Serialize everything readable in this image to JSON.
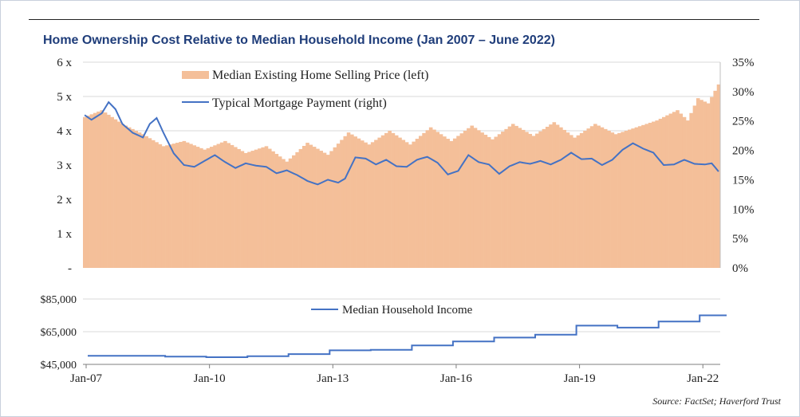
{
  "title": "Home Ownership Cost Relative to Median Household Income (Jan 2007 – June 2022)",
  "source": "Source: FactSet; Haverford Trust",
  "colors": {
    "bar": "#f4bf99",
    "line": "#4472c4",
    "grid": "#d9d9d9",
    "title": "#1f3d7a"
  },
  "chart_data": [
    {
      "type": "bar+line",
      "x_start": "2007-01",
      "x_end": "2022-06",
      "frequency": "monthly",
      "left_axis": {
        "ylim": [
          0,
          6
        ],
        "ticks": [
          "-",
          "1 x",
          "2 x",
          "3 x",
          "4 x",
          "5 x",
          "6 x"
        ]
      },
      "right_axis": {
        "ylim": [
          0,
          35
        ],
        "ticks": [
          "0%",
          "5%",
          "10%",
          "15%",
          "20%",
          "25%",
          "30%",
          "35%"
        ]
      },
      "grid": true,
      "legend_position": "top-left",
      "series": [
        {
          "name": "Median Existing Home Selling Price (left)",
          "type": "bar",
          "axis": "left",
          "anchors": [
            [
              "2007-01",
              4.4
            ],
            [
              "2007-06",
              4.6
            ],
            [
              "2007-12",
              4.2
            ],
            [
              "2008-06",
              3.9
            ],
            [
              "2008-12",
              3.55
            ],
            [
              "2009-06",
              3.7
            ],
            [
              "2009-12",
              3.45
            ],
            [
              "2010-06",
              3.7
            ],
            [
              "2010-12",
              3.35
            ],
            [
              "2011-06",
              3.55
            ],
            [
              "2011-12",
              3.1
            ],
            [
              "2012-06",
              3.65
            ],
            [
              "2012-12",
              3.3
            ],
            [
              "2013-06",
              3.95
            ],
            [
              "2013-12",
              3.6
            ],
            [
              "2014-06",
              4.0
            ],
            [
              "2014-12",
              3.6
            ],
            [
              "2015-06",
              4.1
            ],
            [
              "2015-12",
              3.7
            ],
            [
              "2016-06",
              4.15
            ],
            [
              "2016-12",
              3.75
            ],
            [
              "2017-06",
              4.2
            ],
            [
              "2017-12",
              3.85
            ],
            [
              "2018-06",
              4.25
            ],
            [
              "2018-12",
              3.8
            ],
            [
              "2019-06",
              4.2
            ],
            [
              "2019-12",
              3.9
            ],
            [
              "2020-06",
              4.1
            ],
            [
              "2020-12",
              4.3
            ],
            [
              "2021-06",
              4.6
            ],
            [
              "2021-09",
              4.3
            ],
            [
              "2021-12",
              4.95
            ],
            [
              "2022-03",
              4.8
            ],
            [
              "2022-06",
              5.35
            ]
          ]
        },
        {
          "name": "Typical Mortgage Payment (right)",
          "type": "line",
          "axis": "right",
          "anchors": [
            [
              "2007-01",
              26.0
            ],
            [
              "2007-03",
              25.2
            ],
            [
              "2007-06",
              26.3
            ],
            [
              "2007-08",
              28.2
            ],
            [
              "2007-10",
              27.0
            ],
            [
              "2007-12",
              24.5
            ],
            [
              "2008-03",
              23.0
            ],
            [
              "2008-06",
              22.2
            ],
            [
              "2008-08",
              24.5
            ],
            [
              "2008-10",
              25.5
            ],
            [
              "2008-12",
              23.0
            ],
            [
              "2009-03",
              19.5
            ],
            [
              "2009-06",
              17.5
            ],
            [
              "2009-09",
              17.2
            ],
            [
              "2009-12",
              18.2
            ],
            [
              "2010-03",
              19.2
            ],
            [
              "2010-06",
              18.0
            ],
            [
              "2010-09",
              17.0
            ],
            [
              "2010-12",
              17.8
            ],
            [
              "2011-03",
              17.4
            ],
            [
              "2011-06",
              17.2
            ],
            [
              "2011-09",
              16.1
            ],
            [
              "2011-12",
              16.6
            ],
            [
              "2012-03",
              15.8
            ],
            [
              "2012-06",
              14.8
            ],
            [
              "2012-09",
              14.2
            ],
            [
              "2012-12",
              15.0
            ],
            [
              "2013-03",
              14.5
            ],
            [
              "2013-05",
              15.2
            ],
            [
              "2013-08",
              18.8
            ],
            [
              "2013-11",
              18.6
            ],
            [
              "2014-02",
              17.6
            ],
            [
              "2014-05",
              18.4
            ],
            [
              "2014-08",
              17.3
            ],
            [
              "2014-11",
              17.2
            ],
            [
              "2015-02",
              18.4
            ],
            [
              "2015-05",
              18.9
            ],
            [
              "2015-08",
              17.9
            ],
            [
              "2015-11",
              15.9
            ],
            [
              "2016-02",
              16.5
            ],
            [
              "2016-05",
              19.2
            ],
            [
              "2016-08",
              18.0
            ],
            [
              "2016-11",
              17.6
            ],
            [
              "2017-02",
              16.0
            ],
            [
              "2017-05",
              17.3
            ],
            [
              "2017-08",
              18.0
            ],
            [
              "2017-11",
              17.7
            ],
            [
              "2018-02",
              18.2
            ],
            [
              "2018-05",
              17.6
            ],
            [
              "2018-08",
              18.4
            ],
            [
              "2018-11",
              19.6
            ],
            [
              "2019-02",
              18.5
            ],
            [
              "2019-05",
              18.6
            ],
            [
              "2019-08",
              17.5
            ],
            [
              "2019-11",
              18.4
            ],
            [
              "2020-02",
              20.1
            ],
            [
              "2020-05",
              21.2
            ],
            [
              "2020-08",
              20.3
            ],
            [
              "2020-11",
              19.6
            ],
            [
              "2021-02",
              17.5
            ],
            [
              "2021-05",
              17.6
            ],
            [
              "2021-08",
              18.4
            ],
            [
              "2021-11",
              17.7
            ],
            [
              "2022-02",
              17.6
            ],
            [
              "2022-04",
              17.8
            ],
            [
              "2022-06",
              16.4
            ]
          ]
        }
      ]
    },
    {
      "type": "line",
      "x_start": "2007-01",
      "x_end": "2022-06",
      "frequency": "monthly",
      "ylim": [
        45000,
        85000
      ],
      "yticks": [
        "$45,000",
        "$65,000",
        "$85,000"
      ],
      "xticks": [
        "Jan-07",
        "Jan-10",
        "Jan-13",
        "Jan-16",
        "Jan-19",
        "Jan-22"
      ],
      "legend_position": "top-center",
      "series": [
        {
          "name": "Median Household Income",
          "steps": [
            [
              "2007-01",
              50200
            ],
            [
              "2009-01",
              49800
            ],
            [
              "2010-01",
              49400
            ],
            [
              "2011-01",
              50000
            ],
            [
              "2012-01",
              51300
            ],
            [
              "2013-01",
              53600
            ],
            [
              "2014-01",
              53900
            ],
            [
              "2015-01",
              56600
            ],
            [
              "2016-01",
              59000
            ],
            [
              "2017-01",
              61400
            ],
            [
              "2018-01",
              63200
            ],
            [
              "2019-01",
              68700
            ],
            [
              "2020-01",
              67500
            ],
            [
              "2021-01",
              71200
            ],
            [
              "2022-01",
              75000
            ]
          ]
        }
      ]
    }
  ]
}
